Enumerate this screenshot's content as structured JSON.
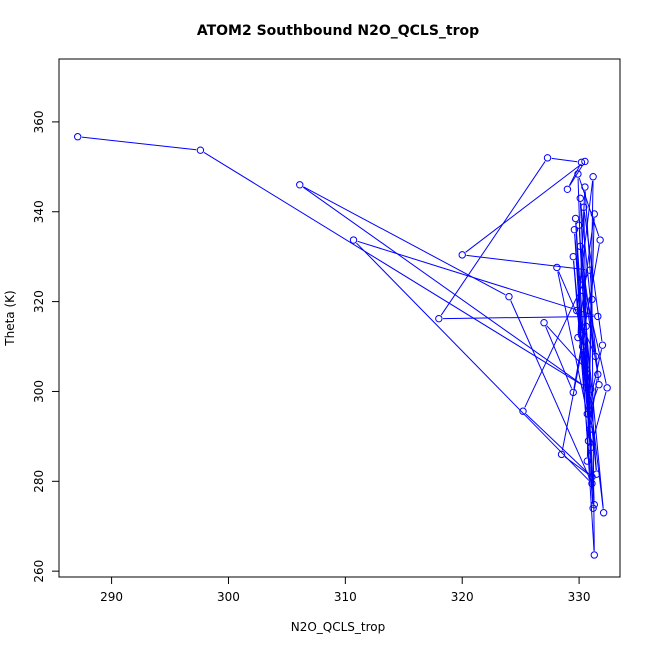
{
  "chart_data": {
    "type": "line",
    "title": "ATOM2 Southbound N2O_QCLS_trop",
    "xlabel": "N2O_QCLS_trop",
    "ylabel": "Theta (K)",
    "xlim": [
      285.5,
      333.5
    ],
    "ylim": [
      258.7,
      374
    ],
    "x_ticks": [
      290,
      300,
      310,
      320,
      330
    ],
    "y_ticks": [
      260,
      280,
      300,
      320,
      340,
      360
    ],
    "grid": false,
    "legend": "none",
    "series": [
      {
        "color": "#0000ff",
        "marker": "open-circle",
        "x": [
          287.1,
          297.6,
          330.6,
          306.1,
          324.0,
          331.1,
          310.7,
          331.6,
          318.0,
          327.3,
          330.2,
          329.0,
          330.5,
          320.0,
          330.9,
          325.2,
          331.1,
          328.5,
          330.3,
          331.3,
          330.0,
          331.5,
          330.6,
          327.0,
          329.5,
          331.8,
          329.9,
          330.1,
          331.4,
          328.1,
          330.7,
          332.0,
          330.4,
          330.8,
          331.2,
          329.8,
          331.0,
          330.2,
          329.7,
          330.9,
          331.6,
          330.3,
          332.4,
          330.7,
          331.3,
          329.9,
          330.5,
          331.1,
          331.3,
          329.6,
          330.8,
          331.7,
          330.1,
          330.6,
          331.0,
          329.5,
          331.2,
          330.3,
          332.1,
          330.5
        ],
        "y": [
          356.7,
          353.7,
          300.9,
          346.0,
          321.1,
          279.5,
          333.7,
          316.7,
          316.2,
          352.0,
          351.0,
          345.0,
          351.2,
          330.4,
          327.0,
          295.6,
          281.0,
          286.0,
          310.0,
          274.8,
          337.0,
          281.6,
          304.9,
          315.3,
          299.8,
          333.7,
          348.4,
          332.3,
          307.8,
          327.6,
          295.0,
          310.3,
          341.0,
          289.0,
          347.8,
          318.0,
          300.5,
          312.5,
          338.5,
          291.5,
          303.8,
          325.0,
          300.8,
          284.5,
          339.5,
          312.0,
          345.5,
          320.5,
          263.6,
          336.0,
          295.0,
          301.5,
          343.0,
          314.5,
          287.5,
          330.0,
          274.0,
          322.5,
          273.0,
          308.0
        ]
      }
    ]
  }
}
